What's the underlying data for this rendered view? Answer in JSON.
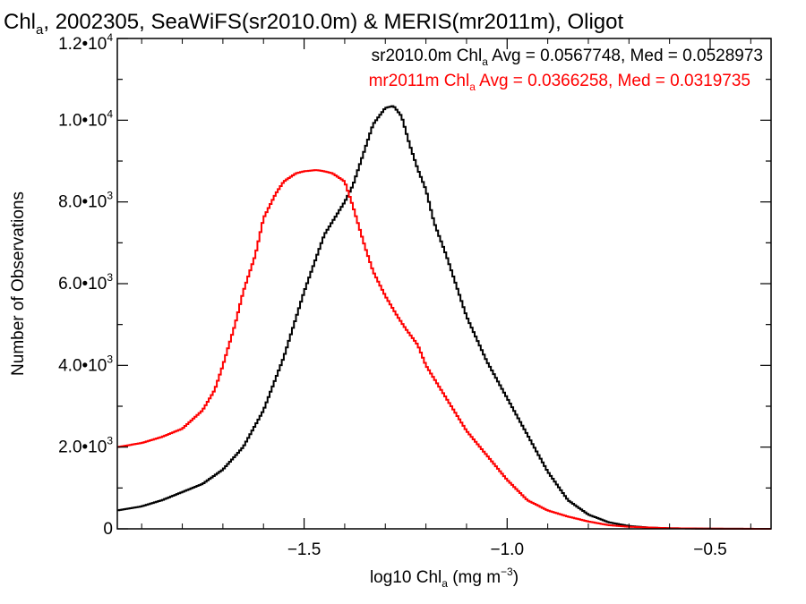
{
  "chart_data": {
    "type": "line",
    "title": {
      "lead": "Chl",
      "sub": "a",
      "rest": ", 2002305, SeaWiFS(sr2010.0m) & MERIS(mr2011m), Oligot"
    },
    "xlabel": {
      "lead": "log10 Chl",
      "sub": "a",
      "mid": " (mg m",
      "sup": "−3",
      "tail": ")"
    },
    "ylabel": "Number of Observations",
    "xlim": [
      -1.96,
      -0.35
    ],
    "ylim": [
      0,
      12000
    ],
    "xticks": [
      {
        "value": -1.5,
        "label": "−1.5"
      },
      {
        "value": -1.0,
        "label": "−1.0"
      },
      {
        "value": -0.5,
        "label": "−0.5"
      }
    ],
    "yticks": [
      {
        "value": 0,
        "mantissa": "0",
        "exp": ""
      },
      {
        "value": 2000,
        "mantissa": "2.0•10",
        "exp": "3"
      },
      {
        "value": 4000,
        "mantissa": "4.0•10",
        "exp": "3"
      },
      {
        "value": 6000,
        "mantissa": "6.0•10",
        "exp": "3"
      },
      {
        "value": 8000,
        "mantissa": "8.0•10",
        "exp": "3"
      },
      {
        "value": 10000,
        "mantissa": "1.0•10",
        "exp": "4"
      },
      {
        "value": 12000,
        "mantissa": "1.2•10",
        "exp": "4"
      }
    ],
    "grid": false,
    "legend_position": "top-right",
    "series": [
      {
        "name": "sr2010.0m",
        "color": "#000000",
        "legend": {
          "lead": "sr2010.0m Chl",
          "sub": "a",
          "rest": " Avg = 0.0567748, Med = 0.0528973"
        },
        "x": [
          -1.96,
          -1.9,
          -1.85,
          -1.8,
          -1.75,
          -1.7,
          -1.65,
          -1.6,
          -1.55,
          -1.5,
          -1.45,
          -1.4,
          -1.38,
          -1.35,
          -1.33,
          -1.3,
          -1.28,
          -1.26,
          -1.24,
          -1.22,
          -1.2,
          -1.18,
          -1.15,
          -1.12,
          -1.1,
          -1.05,
          -1.0,
          -0.95,
          -0.9,
          -0.85,
          -0.8,
          -0.75,
          -0.7,
          -0.65,
          -0.6,
          -0.55,
          -0.5,
          -0.45,
          -0.35
        ],
        "y": [
          450,
          550,
          700,
          900,
          1100,
          1450,
          2000,
          2900,
          4200,
          5800,
          7200,
          8000,
          8400,
          9300,
          9900,
          10300,
          10350,
          10100,
          9400,
          8800,
          8300,
          7500,
          6700,
          5800,
          5200,
          4100,
          3200,
          2300,
          1400,
          700,
          350,
          160,
          70,
          30,
          15,
          8,
          4,
          2,
          0
        ]
      },
      {
        "name": "mr2011m",
        "color": "#ff0000",
        "legend": {
          "lead": "mr2011m Chl",
          "sub": "a",
          "rest": " Avg = 0.0366258, Med = 0.0319735"
        },
        "x": [
          -1.96,
          -1.9,
          -1.85,
          -1.8,
          -1.75,
          -1.72,
          -1.7,
          -1.67,
          -1.65,
          -1.62,
          -1.6,
          -1.57,
          -1.55,
          -1.52,
          -1.5,
          -1.47,
          -1.45,
          -1.43,
          -1.4,
          -1.38,
          -1.35,
          -1.33,
          -1.3,
          -1.27,
          -1.25,
          -1.22,
          -1.2,
          -1.15,
          -1.1,
          -1.05,
          -1.0,
          -0.95,
          -0.9,
          -0.85,
          -0.8,
          -0.75,
          -0.7,
          -0.6,
          -0.5,
          -0.35
        ],
        "y": [
          2000,
          2100,
          2250,
          2450,
          2900,
          3400,
          4000,
          5000,
          5800,
          6700,
          7600,
          8200,
          8500,
          8700,
          8750,
          8780,
          8750,
          8700,
          8500,
          7900,
          6900,
          6300,
          5700,
          5200,
          4900,
          4500,
          4000,
          3200,
          2400,
          1800,
          1200,
          700,
          450,
          300,
          180,
          90,
          50,
          15,
          5,
          0
        ]
      }
    ]
  }
}
